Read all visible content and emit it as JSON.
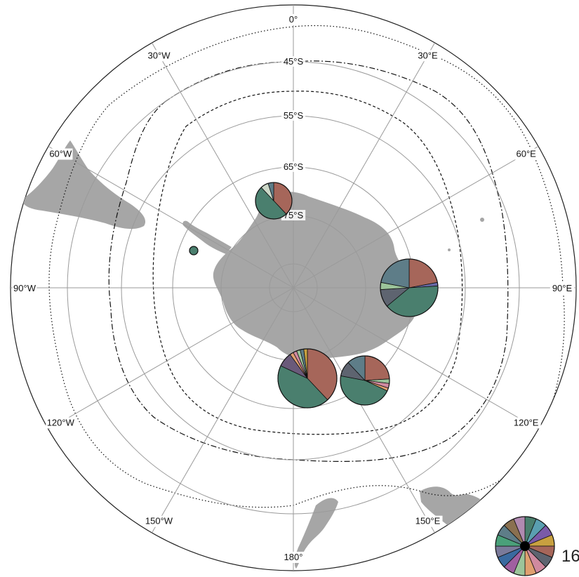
{
  "map": {
    "projection": "south-polar-stereographic",
    "longitude_labels": [
      {
        "text": "0°",
        "lon": 0
      },
      {
        "text": "30°E",
        "lon": 30
      },
      {
        "text": "60°E",
        "lon": 60
      },
      {
        "text": "90°E",
        "lon": 90
      },
      {
        "text": "120°E",
        "lon": 120
      },
      {
        "text": "150°E",
        "lon": 150
      },
      {
        "text": "180°",
        "lon": 180
      },
      {
        "text": "150°W",
        "lon": -150
      },
      {
        "text": "120°W",
        "lon": -120
      },
      {
        "text": "90°W",
        "lon": -90
      },
      {
        "text": "60°W",
        "lon": -60
      },
      {
        "text": "30°W",
        "lon": -30
      }
    ],
    "latitude_labels": [
      {
        "text": "45°S",
        "lat": -45
      },
      {
        "text": "55°S",
        "lat": -55
      },
      {
        "text": "65°S",
        "lat": -65
      },
      {
        "text": "75°S",
        "lat": -75
      }
    ],
    "line_styles": [
      "dotted",
      "dash-dot",
      "dashed"
    ],
    "colors": {
      "land": "#a6a6a6",
      "graticule": "#9a9a9a",
      "pie_edge": "#111111"
    }
  },
  "pie_sites": [
    {
      "name": "site-weddell",
      "lon": -10,
      "lat": -69,
      "size": "small",
      "slices": [
        {
          "color": "#a6665a",
          "value": 38
        },
        {
          "color": "#4a7f6e",
          "value": 50
        },
        {
          "color": "#ccd8c8",
          "value": 7
        },
        {
          "color": "#5e7d88",
          "value": 5
        }
      ]
    },
    {
      "name": "site-peninsula",
      "lon": -64,
      "lat": -65,
      "size": "tiny",
      "slices": [
        {
          "color": "#4a7f6e",
          "value": 100
        }
      ]
    },
    {
      "name": "site-east-antarctica",
      "lon": 96,
      "lat": -64,
      "size": "large",
      "slices": [
        {
          "color": "#a6665a",
          "value": 22
        },
        {
          "color": "#6a6aa8",
          "value": 2
        },
        {
          "color": "#4a7f6e",
          "value": 40
        },
        {
          "color": "#5e6470",
          "value": 10
        },
        {
          "color": "#9cc49a",
          "value": 4
        },
        {
          "color": "#5e7d88",
          "value": 22
        }
      ]
    },
    {
      "name": "site-ross-west",
      "lon": 165,
      "lat": -70,
      "size": "large",
      "slices": [
        {
          "color": "#a6665a",
          "value": 38
        },
        {
          "color": "#4a7f6e",
          "value": 44
        },
        {
          "color": "#6a5a7a",
          "value": 8
        },
        {
          "color": "#e0a070",
          "value": 2
        },
        {
          "color": "#d08aa0",
          "value": 2
        },
        {
          "color": "#9cc49a",
          "value": 2
        },
        {
          "color": "#5e7d88",
          "value": 2
        },
        {
          "color": "#c8a040",
          "value": 2
        }
      ]
    },
    {
      "name": "site-ross-east",
      "lon": 145,
      "lat": -64,
      "size": "medium",
      "slices": [
        {
          "color": "#a6665a",
          "value": 24
        },
        {
          "color": "#9cc49a",
          "value": 3
        },
        {
          "color": "#d08aa0",
          "value": 3
        },
        {
          "color": "#e0a070",
          "value": 2
        },
        {
          "color": "#4a7f6e",
          "value": 46
        },
        {
          "color": "#5e6470",
          "value": 10
        },
        {
          "color": "#5e7d88",
          "value": 12
        }
      ]
    }
  ],
  "legend": {
    "count_label": "16",
    "colors": [
      "#4a7f6e",
      "#5a9fb0",
      "#7a5aa8",
      "#c8a040",
      "#a6665a",
      "#5e6470",
      "#d08aa0",
      "#e0a070",
      "#9cc49a",
      "#a060a0",
      "#3a6aa0",
      "#7a7a9a",
      "#4aa07a",
      "#5e7d88",
      "#8a7050",
      "#b08ab0"
    ]
  }
}
